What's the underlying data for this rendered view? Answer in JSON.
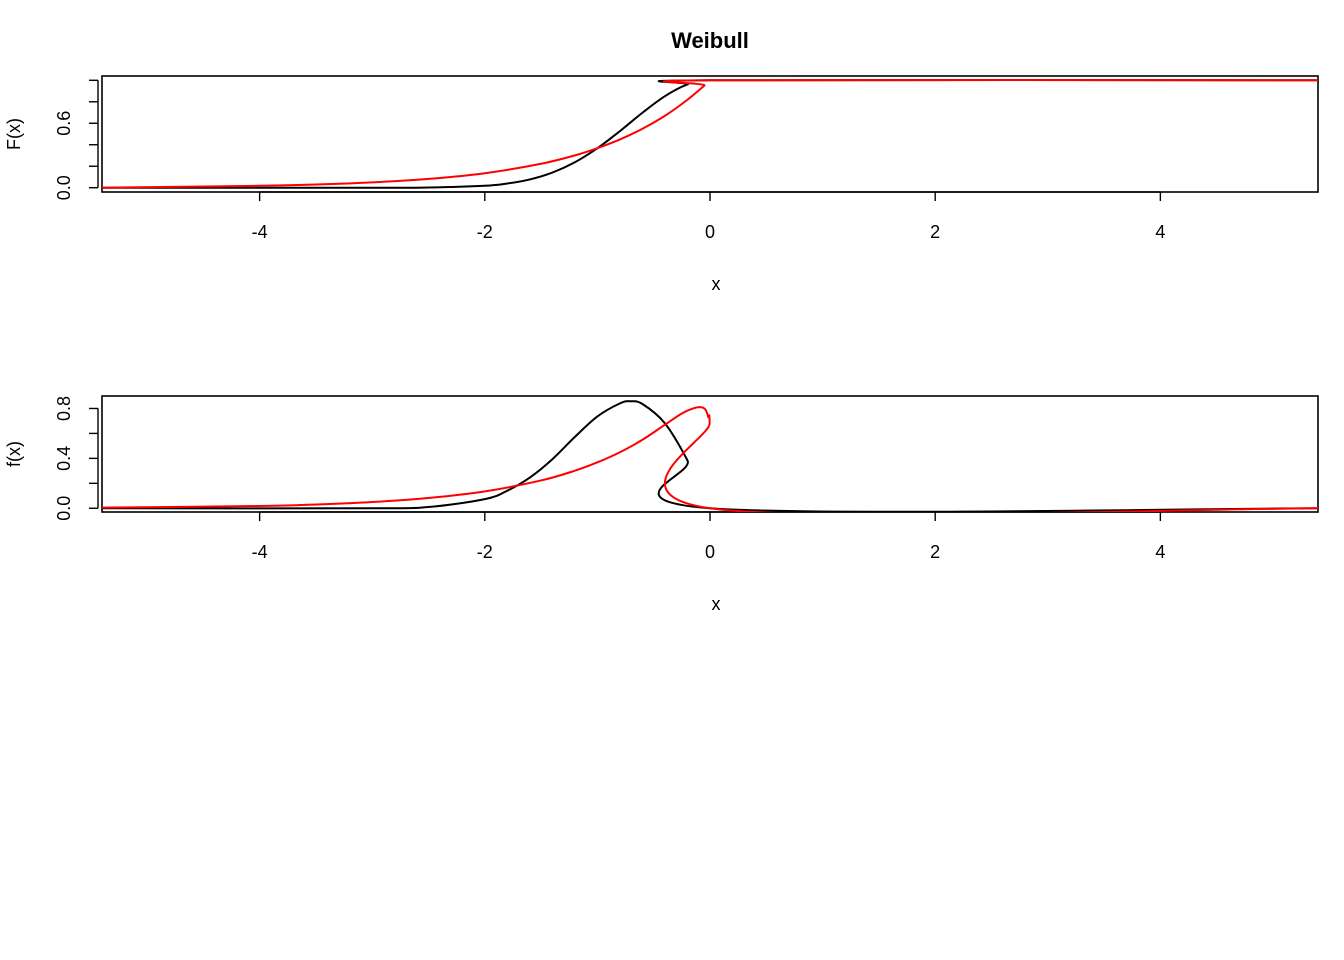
{
  "chart_data": [
    {
      "type": "line",
      "title": "Weibull",
      "xlabel": "x",
      "ylabel": "F(x)",
      "xlim": [
        -5.4,
        5.4
      ],
      "ylim": [
        -0.04,
        1.04
      ],
      "x_ticks": [
        -4,
        -2,
        0,
        2,
        4
      ],
      "x_tick_labels": [
        "-4",
        "-2",
        "0",
        "2",
        "4"
      ],
      "y_ticks": [
        0,
        0.2,
        0.4,
        0.6,
        0.8,
        1.0
      ],
      "y_tick_labels": [
        "0.0",
        "",
        "",
        "0.6",
        "",
        ""
      ],
      "grid": false,
      "series": [
        {
          "color": "#000000",
          "x": [
            -5.4,
            -3.0,
            -2.5,
            -2.0,
            -1.8,
            -1.6,
            -1.4,
            -1.2,
            -1.0,
            -0.8,
            -0.6,
            -0.4,
            -0.2,
            0.0,
            5.4
          ],
          "values": [
            0.0,
            0.0,
            0.002,
            0.018,
            0.039,
            0.077,
            0.141,
            0.237,
            0.368,
            0.527,
            0.698,
            0.852,
            0.961,
            1.0,
            1.0
          ]
        },
        {
          "color": "#ff0000",
          "x": [
            -5.4,
            -4.0,
            -3.5,
            -3.0,
            -2.5,
            -2.0,
            -1.5,
            -1.2,
            -1.0,
            -0.8,
            -0.6,
            -0.4,
            -0.2,
            -0.05,
            0.0,
            5.4
          ],
          "values": [
            0.0,
            0.018,
            0.03,
            0.05,
            0.082,
            0.135,
            0.223,
            0.301,
            0.368,
            0.449,
            0.549,
            0.67,
            0.819,
            0.951,
            1.0,
            1.0
          ]
        }
      ]
    },
    {
      "type": "line",
      "xlabel": "x",
      "ylabel": "f(x)",
      "xlim": [
        -5.4,
        5.4
      ],
      "ylim": [
        -0.03,
        0.9
      ],
      "x_ticks": [
        -4,
        -2,
        0,
        2,
        4
      ],
      "x_tick_labels": [
        "-4",
        "-2",
        "0",
        "2",
        "4"
      ],
      "y_ticks": [
        0,
        0.2,
        0.4,
        0.6,
        0.8
      ],
      "y_tick_labels": [
        "0.0",
        "",
        "0.4",
        "",
        "0.8"
      ],
      "grid": false,
      "series": [
        {
          "color": "#000000",
          "x": [
            -5.4,
            -3.0,
            -2.5,
            -2.0,
            -1.8,
            -1.6,
            -1.4,
            -1.2,
            -1.0,
            -0.8,
            -0.707,
            -0.6,
            -0.4,
            -0.2,
            0.0,
            5.4
          ],
          "values": [
            0.0,
            0.0,
            0.01,
            0.073,
            0.141,
            0.246,
            0.393,
            0.572,
            0.736,
            0.841,
            0.858,
            0.836,
            0.681,
            0.384,
            0.0,
            0.0
          ]
        },
        {
          "color": "#ff0000",
          "x": [
            -5.4,
            -4.0,
            -3.5,
            -3.0,
            -2.5,
            -2.0,
            -1.5,
            -1.2,
            -1.0,
            -0.8,
            -0.6,
            -0.4,
            -0.25,
            -0.15,
            -0.08,
            -0.04,
            -0.015,
            -0.003,
            0.0,
            5.4
          ],
          "values": [
            0.005,
            0.018,
            0.03,
            0.05,
            0.082,
            0.135,
            0.223,
            0.301,
            0.368,
            0.449,
            0.549,
            0.67,
            0.76,
            0.8,
            0.81,
            0.79,
            0.73,
            0.68,
            0.0,
            0.0
          ]
        }
      ]
    }
  ]
}
